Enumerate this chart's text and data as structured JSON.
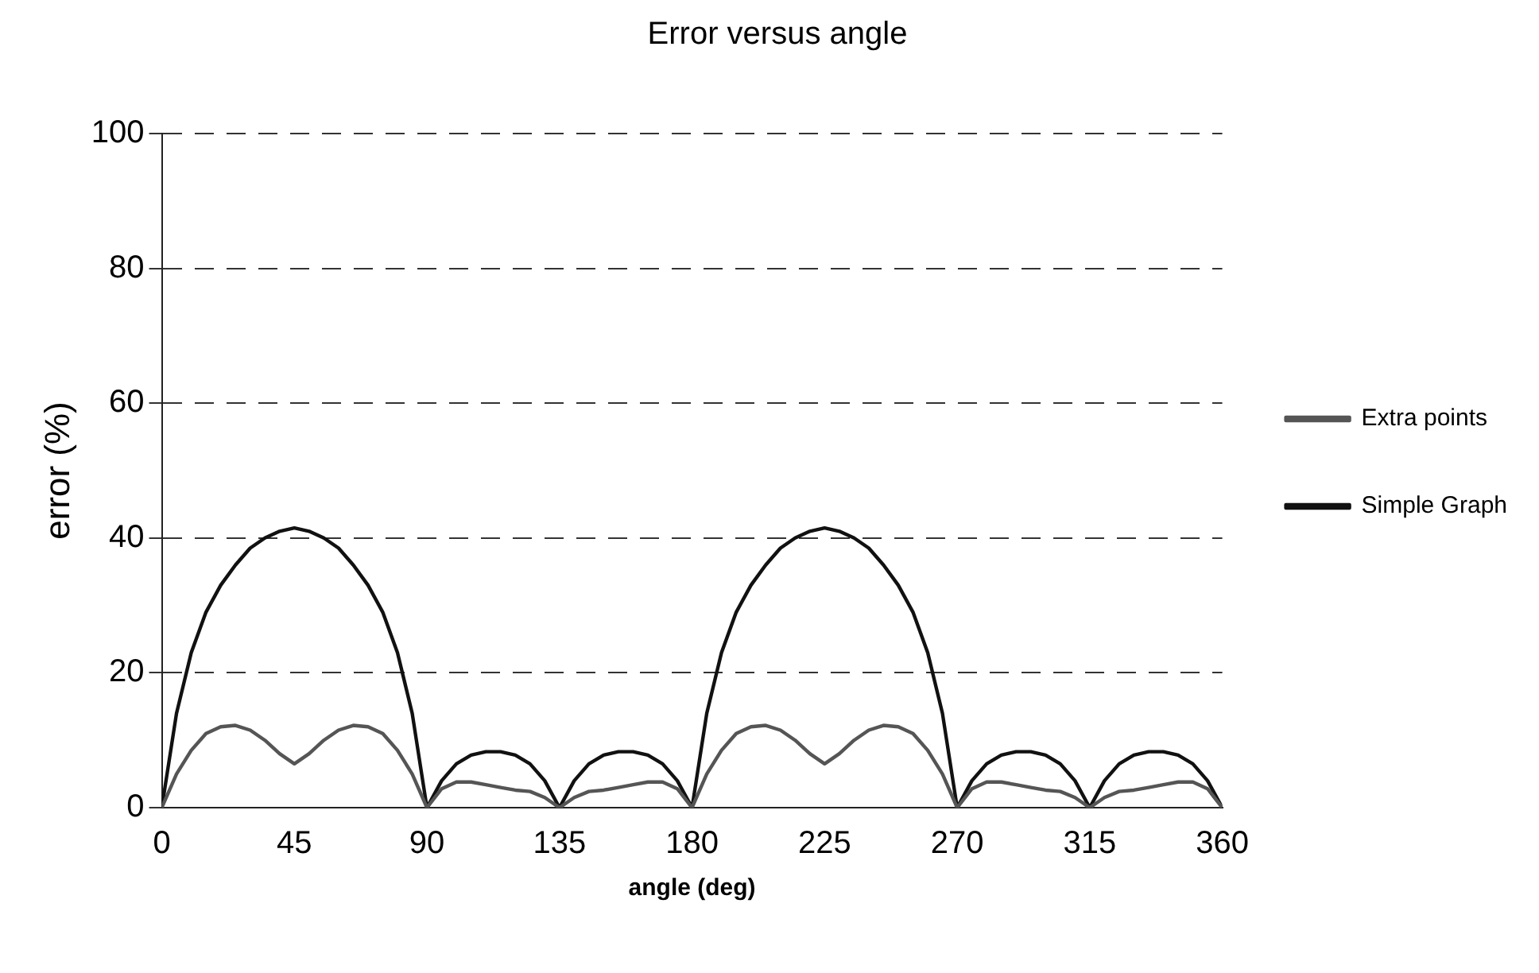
{
  "chart_data": {
    "type": "line",
    "title": "Error versus angle",
    "xlabel": "angle (deg)",
    "ylabel": "error (%)",
    "x": [
      0,
      5,
      10,
      15,
      20,
      25,
      30,
      35,
      40,
      45,
      50,
      55,
      60,
      65,
      70,
      75,
      80,
      85,
      90,
      95,
      100,
      105,
      110,
      115,
      120,
      125,
      130,
      135,
      140,
      145,
      150,
      155,
      160,
      165,
      170,
      175,
      180,
      185,
      190,
      195,
      200,
      205,
      210,
      215,
      220,
      225,
      230,
      235,
      240,
      245,
      250,
      255,
      260,
      265,
      270,
      275,
      280,
      285,
      290,
      295,
      300,
      305,
      310,
      315,
      320,
      325,
      330,
      335,
      340,
      345,
      350,
      355,
      360
    ],
    "series": [
      {
        "name": "Extra points",
        "color": "#555555",
        "values": [
          0,
          5,
          8.5,
          11,
          12,
          12.2,
          11.5,
          10,
          8,
          6.5,
          8,
          10,
          11.5,
          12.2,
          12,
          11,
          8.5,
          5,
          0,
          2.8,
          3.8,
          3.8,
          3.4,
          3,
          2.6,
          2.4,
          1.5,
          0,
          1.5,
          2.4,
          2.6,
          3,
          3.4,
          3.8,
          3.8,
          2.8,
          0,
          5,
          8.5,
          11,
          12,
          12.2,
          11.5,
          10,
          8,
          6.5,
          8,
          10,
          11.5,
          12.2,
          12,
          11,
          8.5,
          5,
          0,
          2.8,
          3.8,
          3.8,
          3.4,
          3,
          2.6,
          2.4,
          1.5,
          0,
          1.5,
          2.4,
          2.6,
          3,
          3.4,
          3.8,
          3.8,
          2.8,
          0
        ]
      },
      {
        "name": "Simple Graph",
        "color": "#111111",
        "values": [
          0,
          14,
          23,
          29,
          33,
          36,
          38.5,
          40,
          41,
          41.5,
          41,
          40,
          38.5,
          36,
          33,
          29,
          23,
          14,
          0,
          4,
          6.5,
          7.8,
          8.3,
          8.3,
          7.8,
          6.5,
          4,
          0,
          4,
          6.5,
          7.8,
          8.3,
          8.3,
          7.8,
          6.5,
          4,
          0,
          14,
          23,
          29,
          33,
          36,
          38.5,
          40,
          41,
          41.5,
          41,
          40,
          38.5,
          36,
          33,
          29,
          23,
          14,
          0,
          4,
          6.5,
          7.8,
          8.3,
          8.3,
          7.8,
          6.5,
          4,
          0,
          4,
          6.5,
          7.8,
          8.3,
          8.3,
          7.8,
          6.5,
          4,
          0
        ]
      }
    ],
    "xlim": [
      0,
      360
    ],
    "xticks": [
      0,
      45,
      90,
      135,
      180,
      225,
      270,
      315,
      360
    ],
    "ylim": [
      0,
      100
    ],
    "yticks": [
      0,
      20,
      40,
      60,
      80,
      100
    ],
    "grid": "y",
    "legend": "right",
    "marker": "none",
    "line_style": "solid"
  }
}
